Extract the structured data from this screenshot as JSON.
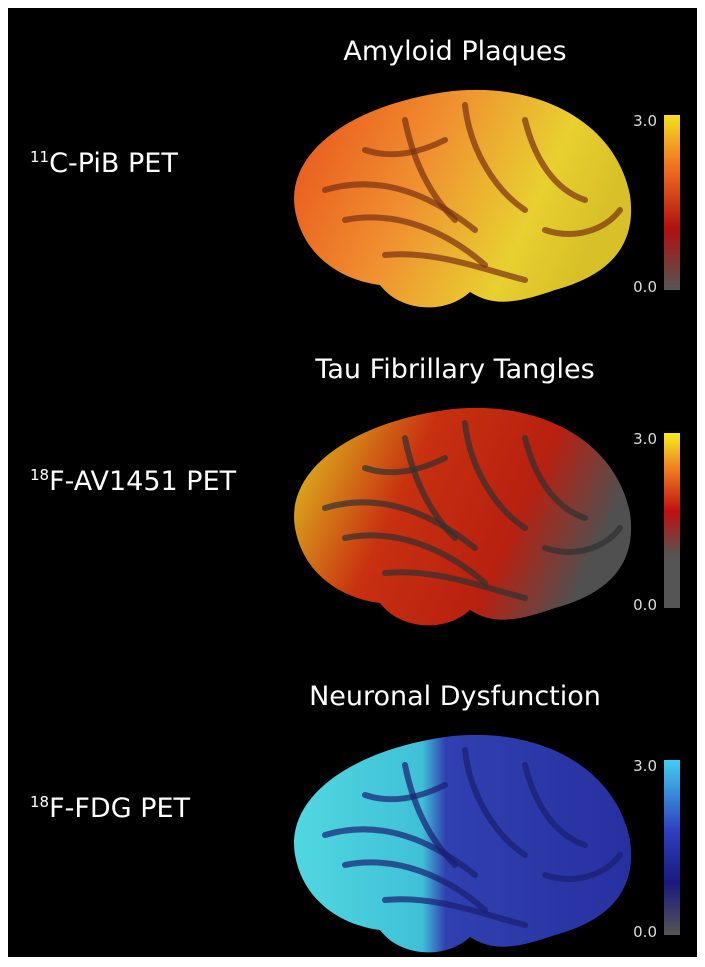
{
  "panels": [
    {
      "tracer_mass": "11",
      "tracer_name": "C-PiB PET",
      "title": "Amyloid Plaques",
      "scale_max": "3.0",
      "scale_min": "0.0"
    },
    {
      "tracer_mass": "18",
      "tracer_name": "F-AV1451 PET",
      "title": "Tau Fibrillary Tangles",
      "scale_max": "3.0",
      "scale_min": "0.0"
    },
    {
      "tracer_mass": "18",
      "tracer_name": "F-FDG PET",
      "title": "Neuronal Dysfunction",
      "scale_max": "3.0",
      "scale_min": "0.0"
    }
  ]
}
